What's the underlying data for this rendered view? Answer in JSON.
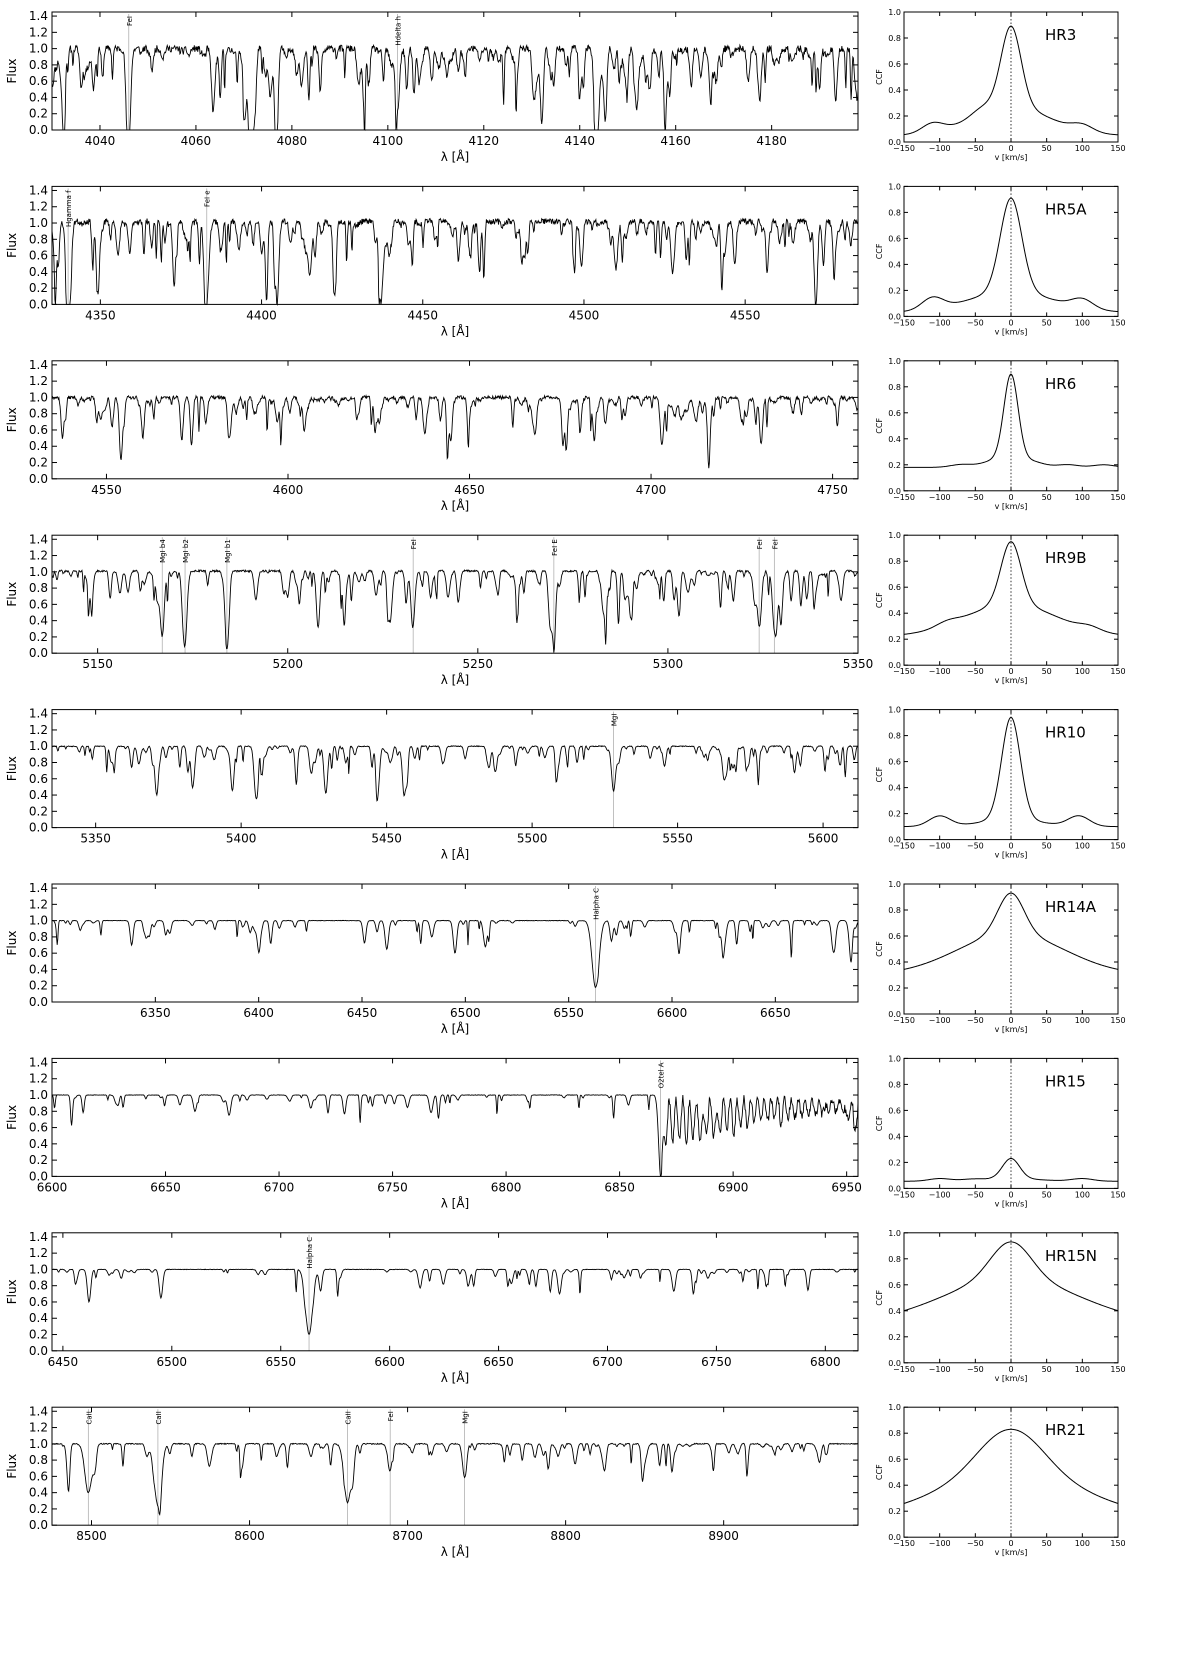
{
  "chart_data": [
    {
      "type": "line",
      "name": "spectrum-hr3",
      "xlim": [
        4030,
        4198
      ],
      "ylim": [
        0,
        1.45
      ],
      "xticks": [
        4040,
        4060,
        4080,
        4100,
        4120,
        4140,
        4160,
        4180
      ],
      "yticks": [
        0.0,
        0.2,
        0.4,
        0.6,
        0.8,
        1.0,
        1.2,
        1.4
      ],
      "xlabel": "λ [Å]",
      "ylabel": "Flux",
      "continuum": 1.0,
      "noise": 0.14,
      "density": 1.2,
      "seed": 11,
      "lines": [
        {
          "label": "FeI",
          "x": 4046,
          "depth": 0.8
        },
        {
          "label": "Hdelta h",
          "x": 4102,
          "depth": 0.78
        }
      ],
      "extra_dips": [
        [
          4063.6,
          0.77
        ],
        [
          4071.7,
          0.7
        ],
        [
          4143.9,
          0.72
        ],
        [
          4132,
          0.6
        ],
        [
          4045.8,
          0.7
        ]
      ]
    },
    {
      "type": "line",
      "name": "spectrum-hr5a",
      "xlim": [
        4335,
        4585
      ],
      "ylim": [
        0,
        1.45
      ],
      "xticks": [
        4350,
        4400,
        4450,
        4500,
        4550
      ],
      "yticks": [
        0.0,
        0.2,
        0.4,
        0.6,
        0.8,
        1.0,
        1.2,
        1.4
      ],
      "xlabel": "λ [Å]",
      "ylabel": "Flux",
      "continuum": 1.02,
      "noise": 0.12,
      "density": 1.0,
      "seed": 23,
      "lines": [
        {
          "label": "Hgamma f",
          "x": 4340,
          "depth": 0.95
        },
        {
          "label": "FeI e",
          "x": 4383,
          "depth": 0.95
        }
      ],
      "extra_dips": [
        [
          4404.8,
          0.65
        ],
        [
          4415,
          0.6
        ],
        [
          4336,
          0.55
        ]
      ]
    },
    {
      "type": "line",
      "name": "spectrum-hr6",
      "xlim": [
        4535,
        4757
      ],
      "ylim": [
        0,
        1.45
      ],
      "xticks": [
        4550,
        4600,
        4650,
        4700,
        4750
      ],
      "yticks": [
        0.0,
        0.2,
        0.4,
        0.6,
        0.8,
        1.0,
        1.2,
        1.4
      ],
      "xlabel": "λ [Å]",
      "ylabel": "Flux",
      "continuum": 1.0,
      "noise": 0.07,
      "density": 1.0,
      "seed": 37,
      "lines": [],
      "extra_dips": [
        [
          4554,
          0.6
        ],
        [
          4703,
          0.58
        ],
        [
          4668,
          0.45
        ],
        [
          4584,
          0.42
        ]
      ]
    },
    {
      "type": "line",
      "name": "spectrum-hr9b",
      "xlim": [
        5138,
        5350
      ],
      "ylim": [
        0,
        1.45
      ],
      "xticks": [
        5150,
        5200,
        5250,
        5300,
        5350
      ],
      "yticks": [
        0.0,
        0.2,
        0.4,
        0.6,
        0.8,
        1.0,
        1.2,
        1.4
      ],
      "xlabel": "λ [Å]",
      "ylabel": "Flux",
      "continuum": 1.01,
      "noise": 0.04,
      "density": 1.0,
      "seed": 41,
      "lines": [
        {
          "label": "MgI b4",
          "x": 5167,
          "depth": 0.75
        },
        {
          "label": "MgI b2",
          "x": 5173,
          "depth": 0.85
        },
        {
          "label": "MgI b1",
          "x": 5184,
          "depth": 0.85
        },
        {
          "label": "FeI",
          "x": 5233,
          "depth": 0.4
        },
        {
          "label": "FeI E",
          "x": 5270,
          "depth": 0.6
        },
        {
          "label": "FeI",
          "x": 5324,
          "depth": 0.6
        },
        {
          "label": "FeI",
          "x": 5328,
          "depth": 0.6
        }
      ],
      "extra_dips": [
        [
          5208,
          0.7
        ],
        [
          5227,
          0.6
        ],
        [
          5269,
          0.6
        ],
        [
          5283,
          0.5
        ]
      ]
    },
    {
      "type": "line",
      "name": "spectrum-hr10",
      "xlim": [
        5335,
        5612
      ],
      "ylim": [
        0,
        1.45
      ],
      "xticks": [
        5350,
        5400,
        5450,
        5500,
        5550,
        5600
      ],
      "yticks": [
        0.0,
        0.2,
        0.4,
        0.6,
        0.8,
        1.0,
        1.2,
        1.4
      ],
      "xlabel": "λ [Å]",
      "ylabel": "Flux",
      "continuum": 1.0,
      "noise": 0.02,
      "density": 0.8,
      "seed": 53,
      "lines": [
        {
          "label": "MgI",
          "x": 5528,
          "depth": 0.55
        }
      ],
      "extra_dips": [
        [
          5371,
          0.6
        ],
        [
          5397,
          0.55
        ],
        [
          5405,
          0.58
        ],
        [
          5447,
          0.55
        ],
        [
          5429,
          0.5
        ],
        [
          5456,
          0.6
        ]
      ]
    },
    {
      "type": "line",
      "name": "spectrum-hr14a",
      "xlim": [
        6300,
        6690
      ],
      "ylim": [
        0,
        1.45
      ],
      "xticks": [
        6350,
        6400,
        6450,
        6500,
        6550,
        6600,
        6650
      ],
      "yticks": [
        0.0,
        0.2,
        0.4,
        0.6,
        0.8,
        1.0,
        1.2,
        1.4
      ],
      "xlabel": "λ [Å]",
      "ylabel": "Flux",
      "continuum": 1.0,
      "noise": 0.01,
      "density": 0.45,
      "seed": 61,
      "lines": [
        {
          "label": "Halpha C",
          "x": 6563,
          "depth": 0.82
        }
      ],
      "extra_dips": [
        [
          6400,
          0.35
        ],
        [
          6462,
          0.35
        ],
        [
          6495,
          0.4
        ],
        [
          6678,
          0.35
        ]
      ]
    },
    {
      "type": "line",
      "name": "spectrum-hr15",
      "xlim": [
        6600,
        6955
      ],
      "ylim": [
        0,
        1.45
      ],
      "xticks": [
        6600,
        6650,
        6700,
        6750,
        6800,
        6850,
        6900,
        6950
      ],
      "yticks": [
        0.0,
        0.2,
        0.4,
        0.6,
        0.8,
        1.0,
        1.2,
        1.4
      ],
      "xlabel": "λ [Å]",
      "ylabel": "Flux",
      "continuum": 1.0,
      "noise": 0.01,
      "density": 0.35,
      "seed": 73,
      "lines": [
        {
          "label": "O2tel A",
          "x": 6868,
          "depth": 0.9
        }
      ],
      "extra_dips": [
        [
          6678,
          0.25
        ],
        [
          6663,
          0.2
        ]
      ]
    },
    {
      "type": "line",
      "name": "spectrum-hr15n",
      "xlim": [
        6445,
        6815
      ],
      "ylim": [
        0,
        1.45
      ],
      "xticks": [
        6450,
        6500,
        6550,
        6600,
        6650,
        6700,
        6750,
        6800
      ],
      "yticks": [
        0.0,
        0.2,
        0.4,
        0.6,
        0.8,
        1.0,
        1.2,
        1.4
      ],
      "xlabel": "λ [Å]",
      "ylabel": "Flux",
      "continuum": 1.0,
      "noise": 0.01,
      "density": 0.4,
      "seed": 89,
      "lines": [
        {
          "label": "Halpha C",
          "x": 6563,
          "depth": 0.8
        }
      ],
      "extra_dips": [
        [
          6462,
          0.4
        ],
        [
          6495,
          0.35
        ],
        [
          6678,
          0.3
        ]
      ]
    },
    {
      "type": "line",
      "name": "spectrum-hr21",
      "xlim": [
        8475,
        8985
      ],
      "ylim": [
        0,
        1.45
      ],
      "xticks": [
        8500,
        8600,
        8700,
        8800,
        8900
      ],
      "yticks": [
        0.0,
        0.2,
        0.4,
        0.6,
        0.8,
        1.0,
        1.2,
        1.4
      ],
      "xlabel": "λ [Å]",
      "ylabel": "Flux",
      "continuum": 1.0,
      "noise": 0.02,
      "density": 0.5,
      "seed": 97,
      "lines": [
        {
          "label": "CaII",
          "x": 8498,
          "depth": 0.6
        },
        {
          "label": "CaII",
          "x": 8542,
          "depth": 0.75
        },
        {
          "label": "CaII",
          "x": 8662,
          "depth": 0.72
        },
        {
          "label": "FeI",
          "x": 8689,
          "depth": 0.3
        },
        {
          "label": "MgI",
          "x": 8736,
          "depth": 0.35
        }
      ],
      "extra_dips": [
        [
          8806,
          0.25
        ],
        [
          8824,
          0.2
        ]
      ]
    },
    {
      "type": "line",
      "name": "ccf-hr3",
      "label": "HR3",
      "xlim": [
        -150,
        150
      ],
      "ylim": [
        0,
        1.0
      ],
      "xticks": [
        -150,
        -100,
        -50,
        0,
        50,
        100,
        150
      ],
      "yticks": [
        0.0,
        0.2,
        0.4,
        0.6,
        0.8,
        1.0
      ],
      "xlabel": "v [km/s]",
      "ylabel": "CCF",
      "profile": {
        "base": 0.05,
        "peak": 0.89,
        "sigma": 14,
        "wing": 0.22,
        "wingsigma": 55,
        "ripples": [
          [
            -110,
            0.07
          ],
          [
            -40,
            0.05
          ],
          [
            100,
            0.05
          ]
        ]
      }
    },
    {
      "type": "line",
      "name": "ccf-hr5a",
      "label": "HR5A",
      "xlim": [
        -150,
        150
      ],
      "ylim": [
        0,
        1.0
      ],
      "xticks": [
        -150,
        -100,
        -50,
        0,
        50,
        100,
        150
      ],
      "yticks": [
        0.0,
        0.2,
        0.4,
        0.6,
        0.8,
        1.0
      ],
      "xlabel": "v [km/s]",
      "ylabel": "CCF",
      "profile": {
        "base": 0.03,
        "peak": 0.91,
        "sigma": 15,
        "wing": 0.16,
        "wingsigma": 60,
        "ripples": [
          [
            -110,
            0.09
          ],
          [
            100,
            0.07
          ]
        ]
      }
    },
    {
      "type": "line",
      "name": "ccf-hr6",
      "label": "HR6",
      "xlim": [
        -150,
        150
      ],
      "ylim": [
        0,
        1.0
      ],
      "xticks": [
        -150,
        -100,
        -50,
        0,
        50,
        100,
        150
      ],
      "yticks": [
        0.0,
        0.2,
        0.4,
        0.6,
        0.8,
        1.0
      ],
      "xlabel": "v [km/s]",
      "ylabel": "CCF",
      "profile": {
        "base": 0.18,
        "peak": 0.89,
        "sigma": 10,
        "wing": 0.05,
        "wingsigma": 30,
        "ripples": [
          [
            -70,
            0.02
          ],
          [
            -25,
            0.02
          ],
          [
            30,
            0.02
          ],
          [
            80,
            0.02
          ],
          [
            130,
            0.02
          ]
        ]
      }
    },
    {
      "type": "line",
      "name": "ccf-hr9b",
      "label": "HR9B",
      "xlim": [
        -150,
        150
      ],
      "ylim": [
        0,
        1.0
      ],
      "xticks": [
        -150,
        -100,
        -50,
        0,
        50,
        100,
        150
      ],
      "yticks": [
        0.0,
        0.2,
        0.4,
        0.6,
        0.8,
        1.0
      ],
      "xlabel": "v [km/s]",
      "ylabel": "CCF",
      "profile": {
        "base": 0.22,
        "peak": 0.95,
        "sigma": 14,
        "wing": 0.25,
        "wingsigma": 65,
        "ripples": [
          [
            -90,
            0.03
          ],
          [
            110,
            0.03
          ]
        ]
      }
    },
    {
      "type": "line",
      "name": "ccf-hr10",
      "label": "HR10",
      "xlim": [
        -150,
        150
      ],
      "ylim": [
        0,
        1.0
      ],
      "xticks": [
        -150,
        -100,
        -50,
        0,
        50,
        100,
        150
      ],
      "yticks": [
        0.0,
        0.2,
        0.4,
        0.6,
        0.8,
        1.0
      ],
      "xlabel": "v [km/s]",
      "ylabel": "CCF",
      "profile": {
        "base": 0.1,
        "peak": 0.94,
        "sigma": 13,
        "wing": 0.06,
        "wingsigma": 40,
        "ripples": [
          [
            -100,
            0.08
          ],
          [
            95,
            0.08
          ]
        ]
      }
    },
    {
      "type": "line",
      "name": "ccf-hr14a",
      "label": "HR14A",
      "xlim": [
        -150,
        150
      ],
      "ylim": [
        0,
        1.0
      ],
      "xticks": [
        -150,
        -100,
        -50,
        0,
        50,
        100,
        150
      ],
      "yticks": [
        0.0,
        0.2,
        0.4,
        0.6,
        0.8,
        1.0
      ],
      "xlabel": "v [km/s]",
      "ylabel": "CCF",
      "profile": {
        "base": 0.3,
        "peak": 0.93,
        "sigma": 18,
        "wing": 0.32,
        "wingsigma": 75,
        "ripples": []
      }
    },
    {
      "type": "line",
      "name": "ccf-hr15",
      "label": "HR15",
      "xlim": [
        -150,
        150
      ],
      "ylim": [
        0,
        1.0
      ],
      "xticks": [
        -150,
        -100,
        -50,
        0,
        50,
        100,
        150
      ],
      "yticks": [
        0.0,
        0.2,
        0.4,
        0.6,
        0.8,
        1.0
      ],
      "xlabel": "v [km/s]",
      "ylabel": "CCF",
      "profile": {
        "base": 0.055,
        "peak": 0.23,
        "sigma": 12,
        "wing": 0.02,
        "wingsigma": 40,
        "ripples": [
          [
            -100,
            0.02
          ],
          [
            -55,
            0.01
          ],
          [
            100,
            0.02
          ]
        ]
      }
    },
    {
      "type": "line",
      "name": "ccf-hr15n",
      "label": "HR15N",
      "xlim": [
        -150,
        150
      ],
      "ylim": [
        0,
        1.0
      ],
      "xticks": [
        -150,
        -100,
        -50,
        0,
        50,
        100,
        150
      ],
      "yticks": [
        0.0,
        0.2,
        0.4,
        0.6,
        0.8,
        1.0
      ],
      "xlabel": "v [km/s]",
      "ylabel": "CCF",
      "profile": {
        "base": 0.3,
        "peak": 0.93,
        "sigma": 28,
        "wing": 0.35,
        "wingsigma": 95,
        "ripples": []
      }
    },
    {
      "type": "line",
      "name": "ccf-hr21",
      "label": "HR21",
      "xlim": [
        -150,
        150
      ],
      "ylim": [
        0,
        1.0
      ],
      "xticks": [
        -150,
        -100,
        -50,
        0,
        50,
        100,
        150
      ],
      "yticks": [
        0.0,
        0.2,
        0.4,
        0.6,
        0.8,
        1.0
      ],
      "xlabel": "v [km/s]",
      "ylabel": "CCF",
      "profile": {
        "base": 0.12,
        "peak": 0.83,
        "sigma": 45,
        "wing": 0.35,
        "wingsigma": 110,
        "ripples": []
      }
    }
  ]
}
